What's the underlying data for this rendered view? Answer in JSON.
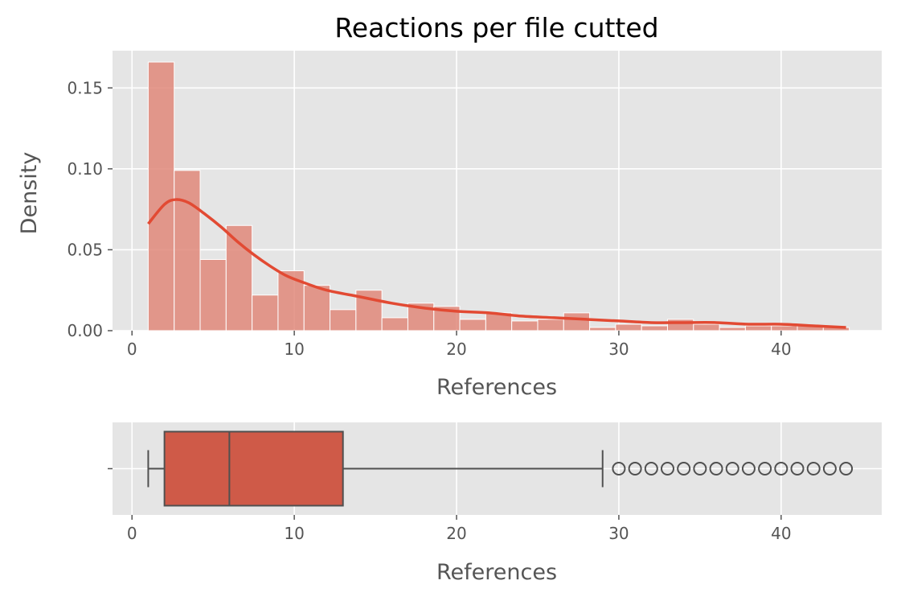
{
  "chart_data": [
    {
      "type": "histogram",
      "title": "Reactions per file cutted",
      "xlabel": "References",
      "ylabel": "Density",
      "xlim": [
        -1.2,
        46.2
      ],
      "ylim": [
        0,
        0.173
      ],
      "xticks": [
        0,
        10,
        20,
        30,
        40
      ],
      "yticks": [
        0.0,
        0.05,
        0.1,
        0.15
      ],
      "xtick_labels": [
        "0",
        "10",
        "20",
        "30",
        "40"
      ],
      "ytick_labels": [
        "0.00",
        "0.05",
        "0.10",
        "0.15"
      ],
      "grid": true,
      "bar_color": "#e0887a",
      "kde_color": "#e24a33",
      "bin_edges": [
        1.0,
        2.6,
        4.2,
        5.8,
        7.4,
        9.0,
        10.6,
        12.2,
        13.8,
        15.4,
        17.0,
        18.6,
        20.2,
        21.8,
        23.4,
        25.0,
        26.6,
        28.2,
        29.8,
        31.4,
        33.0,
        34.6,
        36.2,
        37.8,
        39.4,
        41.0,
        42.6,
        44.2
      ],
      "densities": [
        0.166,
        0.099,
        0.044,
        0.065,
        0.022,
        0.037,
        0.028,
        0.013,
        0.025,
        0.008,
        0.017,
        0.015,
        0.007,
        0.011,
        0.006,
        0.007,
        0.011,
        0.002,
        0.004,
        0.003,
        0.007,
        0.004,
        0.002,
        0.003,
        0.003,
        0.003,
        0.002
      ],
      "kde": {
        "x": [
          1,
          2,
          2.7,
          3.5,
          4.5,
          5.5,
          6.5,
          7.5,
          8.5,
          9.5,
          10.5,
          12,
          14,
          16,
          18,
          20,
          22,
          24,
          26,
          28,
          30,
          32,
          34,
          36,
          38,
          40,
          42,
          44
        ],
        "y": [
          0.066,
          0.078,
          0.081,
          0.079,
          0.072,
          0.064,
          0.055,
          0.047,
          0.04,
          0.034,
          0.03,
          0.025,
          0.021,
          0.017,
          0.014,
          0.012,
          0.011,
          0.009,
          0.008,
          0.007,
          0.006,
          0.005,
          0.005,
          0.005,
          0.004,
          0.004,
          0.003,
          0.002
        ]
      }
    },
    {
      "type": "boxplot",
      "xlabel": "References",
      "xlim": [
        -1.2,
        46.2
      ],
      "xticks": [
        0,
        10,
        20,
        30,
        40
      ],
      "xtick_labels": [
        "0",
        "10",
        "20",
        "30",
        "40"
      ],
      "ytick_labels": [
        ""
      ],
      "grid": true,
      "box_color": "#cf5a48",
      "edge_color": "#505050",
      "whisker_low": 1,
      "q1": 2,
      "median": 6,
      "q3": 13,
      "whisker_high": 29,
      "outliers": [
        30,
        31,
        32,
        33,
        34,
        35,
        36,
        37,
        38,
        39,
        40,
        41,
        42,
        43,
        44
      ]
    }
  ]
}
